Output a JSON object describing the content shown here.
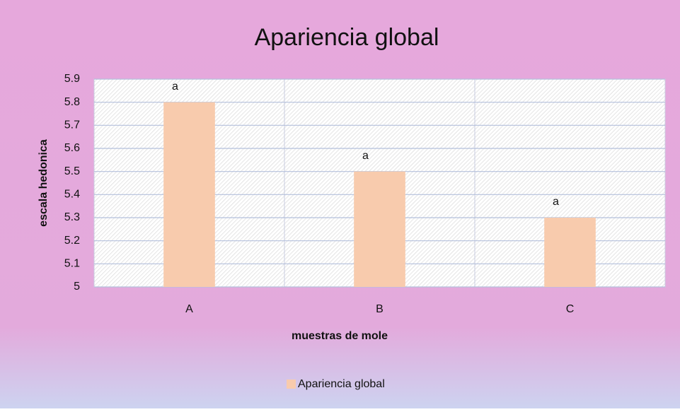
{
  "chart_data": {
    "type": "bar",
    "title": "Apariencia global",
    "xlabel": "muestras de mole",
    "ylabel": "escala hedonica",
    "categories": [
      "A",
      "B",
      "C"
    ],
    "series": [
      {
        "name": "Apariencia global",
        "color": "#f8cbad",
        "values": [
          5.8,
          5.5,
          5.3
        ]
      }
    ],
    "annotations": [
      "a",
      "a",
      "a"
    ],
    "ylim": [
      5,
      5.9
    ],
    "yticks": [
      5,
      5.1,
      5.2,
      5.3,
      5.4,
      5.5,
      5.6,
      5.7,
      5.8,
      5.9
    ],
    "grid": true,
    "legend": "bottom"
  }
}
